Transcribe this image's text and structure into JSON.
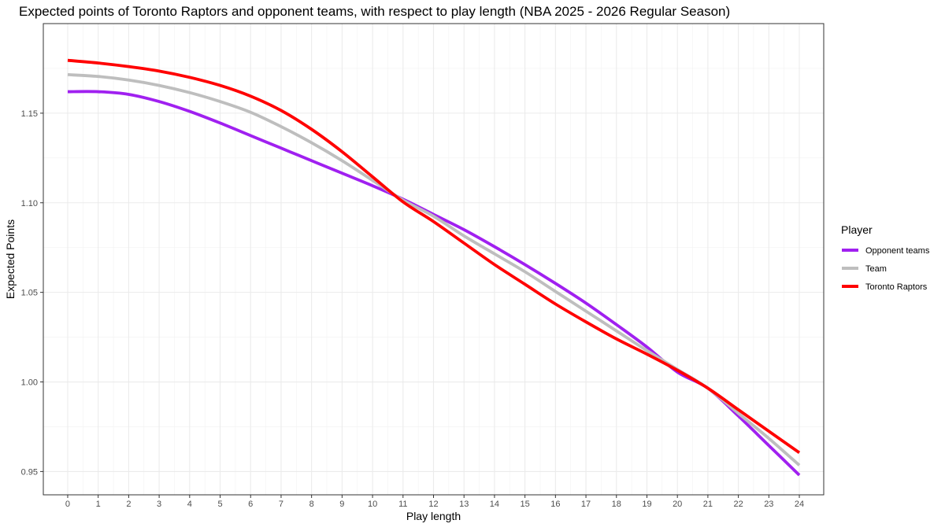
{
  "chart_data": {
    "type": "line",
    "title": "Expected points of Toronto Raptors and opponent teams, with respect to play length (NBA 2025 - 2026 Regular Season)",
    "xlabel": "Play length",
    "ylabel": "Expected Points",
    "xlim": [
      -0.8,
      24.8
    ],
    "ylim": [
      0.937,
      1.2
    ],
    "x_ticks": [
      0,
      1,
      2,
      3,
      4,
      5,
      6,
      7,
      8,
      9,
      10,
      11,
      12,
      13,
      14,
      15,
      16,
      17,
      18,
      19,
      20,
      21,
      22,
      23,
      24
    ],
    "y_ticks": [
      0.95,
      1.0,
      1.05,
      1.1,
      1.15
    ],
    "y_tick_labels": [
      "0.95",
      "1.00",
      "1.05",
      "1.10",
      "1.15"
    ],
    "grid": true,
    "legend_title": "Player",
    "legend_position": "right",
    "x": [
      0,
      1,
      2,
      3,
      4,
      5,
      6,
      7,
      8,
      9,
      10,
      11,
      12,
      13,
      14,
      15,
      16,
      17,
      18,
      19,
      20,
      21,
      22,
      23,
      24
    ],
    "series": [
      {
        "name": "Opponent teams",
        "color": "#a020f0",
        "values": [
          1.162,
          1.162,
          1.1605,
          1.1565,
          1.151,
          1.1445,
          1.1375,
          1.1305,
          1.1235,
          1.1165,
          1.1095,
          1.102,
          1.0935,
          1.085,
          1.0755,
          1.0655,
          1.055,
          1.044,
          1.032,
          1.0195,
          1.0055,
          0.9965,
          0.981,
          0.9645,
          0.948
        ]
      },
      {
        "name": "Team",
        "color": "#bebebe",
        "values": [
          1.1715,
          1.1705,
          1.1685,
          1.1655,
          1.1615,
          1.1565,
          1.1505,
          1.1425,
          1.1335,
          1.1235,
          1.1125,
          1.1015,
          1.0925,
          1.0815,
          1.0715,
          1.0615,
          1.0505,
          1.0395,
          1.0285,
          1.0175,
          1.007,
          0.9965,
          0.9825,
          0.9685,
          0.9535
        ]
      },
      {
        "name": "Toronto Raptors",
        "color": "#ff0000",
        "values": [
          1.1795,
          1.178,
          1.176,
          1.1735,
          1.17,
          1.1655,
          1.1595,
          1.1515,
          1.141,
          1.1285,
          1.1145,
          1.1005,
          1.0895,
          1.0775,
          1.0655,
          1.0545,
          1.0435,
          1.0335,
          1.024,
          1.0155,
          1.0065,
          0.9965,
          0.9845,
          0.9725,
          0.9605
        ]
      }
    ]
  }
}
